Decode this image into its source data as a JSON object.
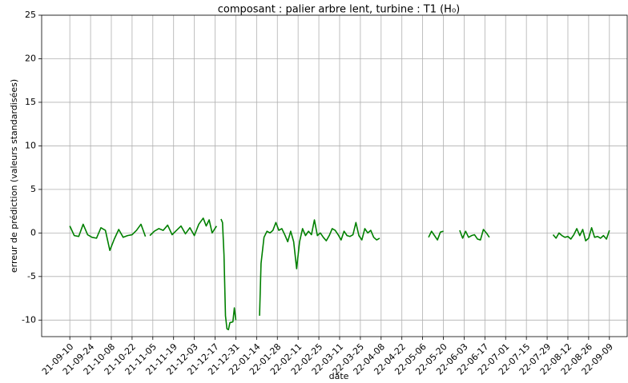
{
  "chart_data": {
    "type": "line",
    "title": "composant : palier arbre lent, turbine : T1 (H₀)",
    "xlabel": "date",
    "ylabel": "erreur de prédiction (valeurs standardisées)",
    "color": "#008000",
    "grid": true,
    "xlim": [
      "21-08-22",
      "22-09-21"
    ],
    "ylim": [
      -11.9,
      25
    ],
    "yticks": [
      -10,
      -5,
      0,
      5,
      10,
      15,
      20,
      25
    ],
    "xticks": [
      "21-09-10",
      "21-09-24",
      "21-10-08",
      "21-10-22",
      "21-11-05",
      "21-11-19",
      "21-12-03",
      "21-12-17",
      "21-12-31",
      "22-01-14",
      "22-01-28",
      "22-02-11",
      "22-02-25",
      "22-03-11",
      "22-03-25",
      "22-04-08",
      "22-04-22",
      "22-05-06",
      "22-05-20",
      "22-06-03",
      "22-06-17",
      "22-07-01",
      "22-07-15",
      "22-07-29",
      "22-08-12",
      "22-08-26",
      "22-09-09"
    ],
    "x": [
      "21-09-10",
      "21-09-13",
      "21-09-16",
      "21-09-19",
      "21-09-22",
      "21-09-25",
      "21-09-28",
      "21-10-01",
      "21-10-04",
      "21-10-07",
      "21-10-10",
      "21-10-13",
      "21-10-16",
      "21-10-19",
      "21-10-22",
      "21-10-25",
      "21-10-28",
      "21-10-31",
      "21-11-01",
      "21-11-03",
      "21-11-06",
      "21-11-09",
      "21-11-12",
      "21-11-15",
      "21-11-18",
      "21-11-21",
      "21-11-24",
      "21-11-27",
      "21-11-30",
      "21-12-03",
      "21-12-06",
      "21-12-09",
      "21-12-11",
      "21-12-13",
      "21-12-15",
      "21-12-18",
      "21-12-19",
      "21-12-21",
      "21-12-22",
      "21-12-23",
      "21-12-24",
      "21-12-25",
      "21-12-26",
      "21-12-27",
      "21-12-29",
      "21-12-30",
      "21-12-31",
      "22-01-08",
      "22-01-16",
      "22-01-17",
      "22-01-19",
      "22-01-21",
      "22-01-23",
      "22-01-25",
      "22-01-27",
      "22-01-29",
      "22-01-31",
      "22-02-02",
      "22-02-04",
      "22-02-06",
      "22-02-08",
      "22-02-10",
      "22-02-12",
      "22-02-14",
      "22-02-16",
      "22-02-18",
      "22-02-20",
      "22-02-22",
      "22-02-24",
      "22-02-26",
      "22-02-28",
      "22-03-02",
      "22-03-04",
      "22-03-06",
      "22-03-08",
      "22-03-10",
      "22-03-12",
      "22-03-14",
      "22-03-16",
      "22-03-18",
      "22-03-20",
      "22-03-22",
      "22-03-24",
      "22-03-26",
      "22-03-28",
      "22-03-30",
      "22-04-01",
      "22-04-03",
      "22-04-05",
      "22-04-07",
      "22-04-20",
      "22-05-10",
      "22-05-12",
      "22-05-14",
      "22-05-16",
      "22-05-18",
      "22-05-20",
      "22-05-25",
      "22-05-31",
      "22-06-02",
      "22-06-04",
      "22-06-06",
      "22-06-08",
      "22-06-10",
      "22-06-12",
      "22-06-14",
      "22-06-16",
      "22-06-18",
      "22-06-20",
      "22-07-10",
      "22-08-02",
      "22-08-04",
      "22-08-06",
      "22-08-08",
      "22-08-10",
      "22-08-12",
      "22-08-14",
      "22-08-16",
      "22-08-18",
      "22-08-20",
      "22-08-22",
      "22-08-24",
      "22-08-26",
      "22-08-28",
      "22-08-30",
      "22-09-01",
      "22-09-03",
      "22-09-05",
      "22-09-07",
      "22-09-09"
    ],
    "values": [
      0.8,
      -0.3,
      -0.4,
      1.0,
      -0.2,
      -0.5,
      -0.6,
      0.6,
      0.3,
      -2.0,
      -0.7,
      0.4,
      -0.5,
      -0.3,
      -0.2,
      0.3,
      1.0,
      -0.4,
      null,
      -0.3,
      0.2,
      0.5,
      0.3,
      0.9,
      -0.2,
      0.3,
      0.8,
      -0.1,
      0.6,
      -0.3,
      1.0,
      1.7,
      0.8,
      1.5,
      0.0,
      0.8,
      null,
      1.6,
      1.2,
      -2.5,
      -9.5,
      -11.0,
      -11.1,
      -10.3,
      -10.2,
      -8.6,
      -10.0,
      null,
      -9.5,
      -3.5,
      -0.5,
      0.2,
      0.0,
      0.3,
      1.2,
      0.3,
      0.5,
      -0.2,
      -1.0,
      0.2,
      -1.0,
      -4.1,
      -1.0,
      0.5,
      -0.3,
      0.2,
      -0.2,
      1.5,
      -0.3,
      0.0,
      -0.5,
      -0.9,
      -0.3,
      0.5,
      0.3,
      -0.2,
      -0.8,
      0.2,
      -0.3,
      -0.4,
      -0.2,
      1.2,
      -0.3,
      -0.8,
      0.5,
      0.0,
      0.3,
      -0.5,
      -0.8,
      -0.6,
      null,
      -0.5,
      0.2,
      -0.3,
      -0.8,
      0.1,
      0.2,
      null,
      0.3,
      -0.6,
      0.2,
      -0.5,
      -0.3,
      -0.2,
      -0.7,
      -0.8,
      0.4,
      0.0,
      -0.5,
      null,
      -0.2,
      -0.6,
      0.0,
      -0.3,
      -0.5,
      -0.4,
      -0.7,
      -0.2,
      0.5,
      -0.3,
      0.4,
      -0.9,
      -0.6,
      0.6,
      -0.5,
      -0.4,
      -0.6,
      -0.3,
      -0.7,
      0.3
    ]
  }
}
